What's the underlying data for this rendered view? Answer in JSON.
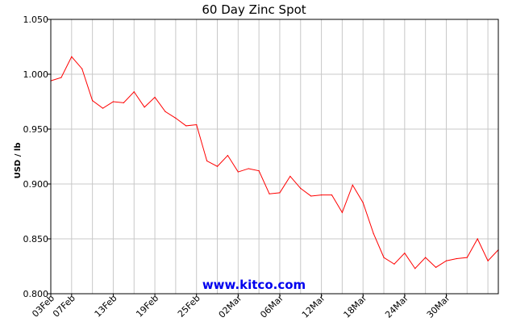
{
  "chart_data": {
    "type": "line",
    "title": "60 Day Zinc Spot",
    "ylabel": "USD / lb",
    "xlabel": "",
    "ylim": [
      0.8,
      1.05
    ],
    "y_ticks": [
      "0.800",
      "0.850",
      "0.900",
      "0.950",
      "1.000",
      "1.050"
    ],
    "x_ticks": [
      "03Feb",
      "07Feb",
      "13Feb",
      "19Feb",
      "25Feb",
      "02Mar",
      "06Mar",
      "12Mar",
      "18Mar",
      "24Mar",
      "30Mar"
    ],
    "x_tick_index": [
      0,
      2,
      6,
      10,
      14,
      18,
      22,
      26,
      30,
      34,
      38
    ],
    "grid": true,
    "line_color": "#ff0000",
    "series": [
      {
        "values": [
          0.994,
          0.997,
          1.016,
          1.005,
          0.976,
          0.969,
          0.975,
          0.974,
          0.984,
          0.97,
          0.979,
          0.966,
          0.96,
          0.953,
          0.954,
          0.921,
          0.916,
          0.926,
          0.911,
          0.914,
          0.912,
          0.891,
          0.892,
          0.907,
          0.896,
          0.889,
          0.89,
          0.89,
          0.874,
          0.899,
          0.883,
          0.855,
          0.833,
          0.827,
          0.837,
          0.823,
          0.833,
          0.824,
          0.83,
          0.832,
          0.833,
          0.85,
          0.83,
          0.84
        ]
      }
    ],
    "watermark": "www.kitco.com"
  }
}
